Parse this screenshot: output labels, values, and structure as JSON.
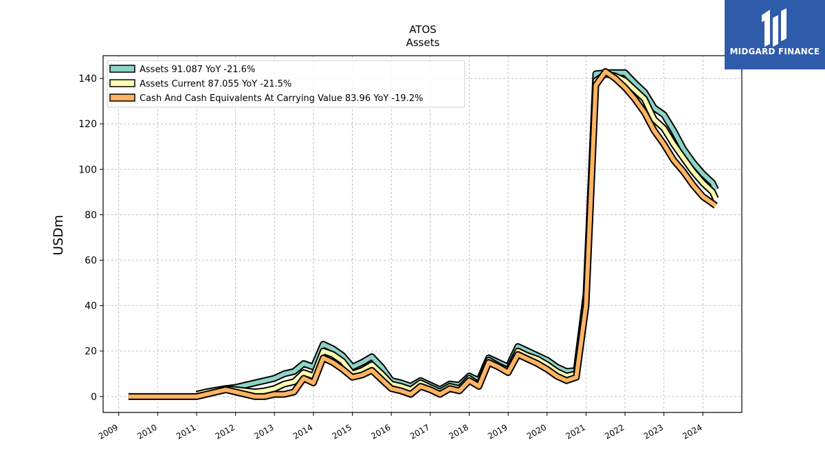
{
  "chart_data": {
    "type": "line",
    "title": "ATOS",
    "subtitle": "Assets",
    "ylabel": "USDm",
    "xlabel": "",
    "ylim": [
      -7,
      150
    ],
    "xlim": [
      2008.6,
      2025.0
    ],
    "yticks": [
      0,
      20,
      40,
      60,
      80,
      100,
      120,
      140
    ],
    "xticks": [
      "2009",
      "2010",
      "2011",
      "2012",
      "2013",
      "2014",
      "2015",
      "2016",
      "2017",
      "2018",
      "2019",
      "2020",
      "2021",
      "2022",
      "2023",
      "2024"
    ],
    "grid": true,
    "legend_position": "top-left",
    "series": [
      {
        "name": "Assets  91.087 YoY -21.6%",
        "color": "#8dd3c7",
        "points": [
          [
            2011.0,
            1.0
          ],
          [
            2011.25,
            2.0
          ],
          [
            2011.75,
            3.5
          ],
          [
            2012.0,
            4.0
          ],
          [
            2012.25,
            5.0
          ],
          [
            2012.5,
            6.0
          ],
          [
            2012.75,
            7.0
          ],
          [
            2013.0,
            8.0
          ],
          [
            2013.25,
            10.0
          ],
          [
            2013.5,
            11.0
          ],
          [
            2013.75,
            14.5
          ],
          [
            2014.0,
            13.0
          ],
          [
            2014.25,
            23.0
          ],
          [
            2014.5,
            21.0
          ],
          [
            2014.75,
            18.0
          ],
          [
            2015.0,
            13.0
          ],
          [
            2015.25,
            15.0
          ],
          [
            2015.5,
            17.5
          ],
          [
            2015.75,
            13.0
          ],
          [
            2016.0,
            7.0
          ],
          [
            2016.25,
            6.0
          ],
          [
            2016.5,
            4.5
          ],
          [
            2016.75,
            7.0
          ],
          [
            2017.0,
            5.0
          ],
          [
            2017.25,
            3.0
          ],
          [
            2017.5,
            5.5
          ],
          [
            2017.75,
            5.0
          ],
          [
            2018.0,
            9.0
          ],
          [
            2018.25,
            7.0
          ],
          [
            2018.5,
            17.0
          ],
          [
            2018.75,
            15.0
          ],
          [
            2019.0,
            13.0
          ],
          [
            2019.25,
            22.0
          ],
          [
            2019.5,
            20.0
          ],
          [
            2019.75,
            18.0
          ],
          [
            2020.0,
            16.0
          ],
          [
            2020.25,
            13.0
          ],
          [
            2020.5,
            11.0
          ],
          [
            2020.75,
            11.5
          ],
          [
            2021.0,
            45.0
          ],
          [
            2021.25,
            142.0
          ],
          [
            2021.5,
            142.5
          ],
          [
            2021.75,
            142.5
          ],
          [
            2022.0,
            142.5
          ],
          [
            2022.25,
            138.0
          ],
          [
            2022.5,
            134.0
          ],
          [
            2022.75,
            127.0
          ],
          [
            2023.0,
            124.0
          ],
          [
            2023.25,
            117.0
          ],
          [
            2023.5,
            109.0
          ],
          [
            2023.75,
            103.0
          ],
          [
            2024.0,
            98.0
          ],
          [
            2024.25,
            94.0
          ],
          [
            2024.33,
            91.087
          ]
        ]
      },
      {
        "name": "Assets Current  87.055 YoY -21.5%",
        "color": "#ffffb3",
        "points": [
          [
            2011.0,
            1.0
          ],
          [
            2011.25,
            2.0
          ],
          [
            2011.75,
            3.5
          ],
          [
            2012.0,
            3.0
          ],
          [
            2012.25,
            2.5
          ],
          [
            2012.5,
            2.0
          ],
          [
            2012.75,
            2.5
          ],
          [
            2013.0,
            3.5
          ],
          [
            2013.25,
            5.5
          ],
          [
            2013.5,
            6.5
          ],
          [
            2013.75,
            10.5
          ],
          [
            2014.0,
            9.0
          ],
          [
            2014.25,
            20.0
          ],
          [
            2014.5,
            18.5
          ],
          [
            2014.75,
            15.5
          ],
          [
            2015.0,
            10.0
          ],
          [
            2015.25,
            11.5
          ],
          [
            2015.5,
            14.0
          ],
          [
            2015.75,
            10.0
          ],
          [
            2016.0,
            5.5
          ],
          [
            2016.25,
            4.5
          ],
          [
            2016.5,
            3.0
          ],
          [
            2016.75,
            6.0
          ],
          [
            2017.0,
            4.0
          ],
          [
            2017.25,
            2.0
          ],
          [
            2017.5,
            4.5
          ],
          [
            2017.75,
            3.5
          ],
          [
            2018.0,
            8.0
          ],
          [
            2018.25,
            5.0
          ],
          [
            2018.5,
            16.0
          ],
          [
            2018.75,
            13.5
          ],
          [
            2019.0,
            11.5
          ],
          [
            2019.25,
            20.0
          ],
          [
            2019.5,
            18.0
          ],
          [
            2019.75,
            16.5
          ],
          [
            2020.0,
            14.0
          ],
          [
            2020.25,
            11.0
          ],
          [
            2020.5,
            9.0
          ],
          [
            2020.75,
            10.0
          ],
          [
            2021.0,
            42.0
          ],
          [
            2021.25,
            139.0
          ],
          [
            2021.5,
            142.0
          ],
          [
            2021.75,
            141.0
          ],
          [
            2022.0,
            139.0
          ],
          [
            2022.25,
            135.0
          ],
          [
            2022.5,
            131.0
          ],
          [
            2022.75,
            122.0
          ],
          [
            2023.0,
            118.0
          ],
          [
            2023.25,
            111.0
          ],
          [
            2023.5,
            105.0
          ],
          [
            2023.75,
            99.0
          ],
          [
            2024.0,
            94.0
          ],
          [
            2024.25,
            90.0
          ],
          [
            2024.33,
            87.055
          ]
        ]
      },
      {
        "name": "Cash And Cash Equivalents At Carrying Value  83.96 YoY -19.2%",
        "color": "#fdb462",
        "points": [
          [
            2009.25,
            0.0
          ],
          [
            2009.75,
            0.0
          ],
          [
            2010.25,
            0.0
          ],
          [
            2011.0,
            0.0
          ],
          [
            2011.25,
            1.0
          ],
          [
            2011.75,
            3.0
          ],
          [
            2012.0,
            2.0
          ],
          [
            2012.25,
            1.0
          ],
          [
            2012.5,
            0.0
          ],
          [
            2012.75,
            0.0
          ],
          [
            2013.0,
            1.0
          ],
          [
            2013.25,
            1.0
          ],
          [
            2013.5,
            2.0
          ],
          [
            2013.75,
            8.0
          ],
          [
            2014.0,
            6.0
          ],
          [
            2014.25,
            17.0
          ],
          [
            2014.5,
            15.0
          ],
          [
            2014.75,
            12.0
          ],
          [
            2015.0,
            8.5
          ],
          [
            2015.25,
            9.5
          ],
          [
            2015.5,
            11.5
          ],
          [
            2015.75,
            7.5
          ],
          [
            2016.0,
            3.5
          ],
          [
            2016.25,
            2.5
          ],
          [
            2016.5,
            1.0
          ],
          [
            2016.75,
            4.5
          ],
          [
            2017.0,
            3.0
          ],
          [
            2017.25,
            1.0
          ],
          [
            2017.5,
            3.5
          ],
          [
            2017.75,
            2.5
          ],
          [
            2018.0,
            7.0
          ],
          [
            2018.25,
            4.5
          ],
          [
            2018.5,
            15.0
          ],
          [
            2018.75,
            13.0
          ],
          [
            2019.0,
            10.5
          ],
          [
            2019.25,
            18.5
          ],
          [
            2019.5,
            16.5
          ],
          [
            2019.75,
            14.5
          ],
          [
            2020.0,
            12.0
          ],
          [
            2020.25,
            9.0
          ],
          [
            2020.5,
            7.0
          ],
          [
            2020.75,
            8.5
          ],
          [
            2021.0,
            40.0
          ],
          [
            2021.25,
            137.0
          ],
          [
            2021.5,
            143.0
          ],
          [
            2021.75,
            140.0
          ],
          [
            2022.0,
            136.0
          ],
          [
            2022.25,
            131.0
          ],
          [
            2022.5,
            125.0
          ],
          [
            2022.75,
            117.0
          ],
          [
            2023.0,
            111.0
          ],
          [
            2023.25,
            104.0
          ],
          [
            2023.5,
            99.0
          ],
          [
            2023.75,
            93.0
          ],
          [
            2024.0,
            88.0
          ],
          [
            2024.25,
            85.0
          ],
          [
            2024.33,
            83.96
          ]
        ]
      }
    ]
  },
  "logo": {
    "text": "MIDGARD FINANCE",
    "background": "#2f5bab"
  }
}
